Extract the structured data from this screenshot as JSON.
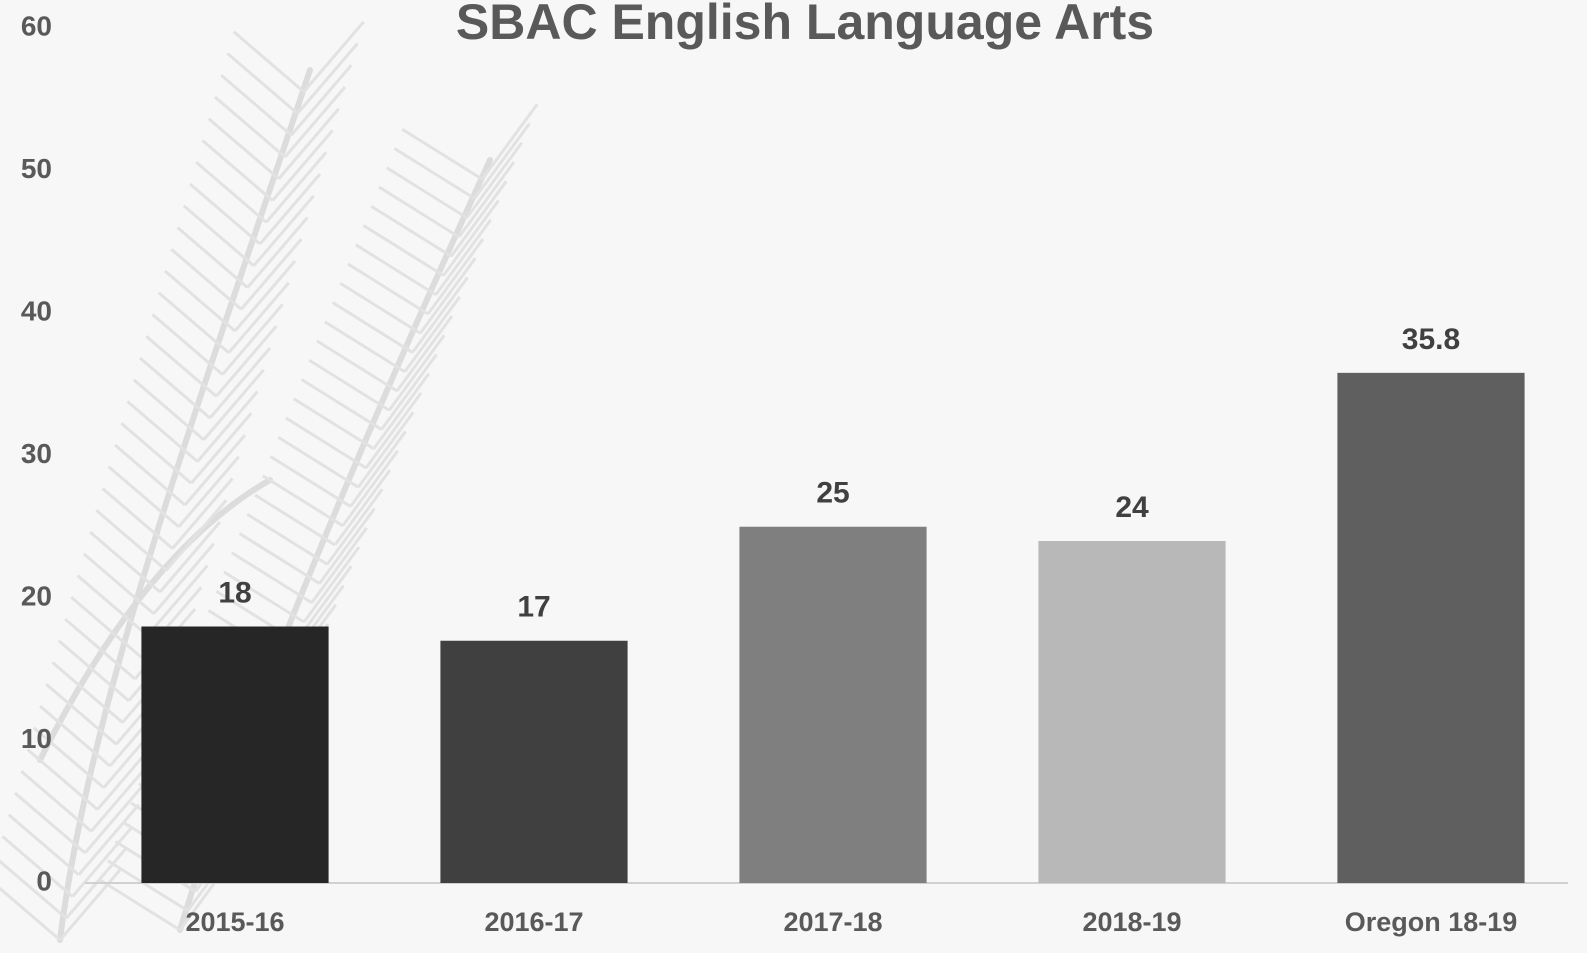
{
  "chart_data": {
    "type": "bar",
    "title": "SBAC English Language Arts",
    "categories": [
      "2015-16",
      "2016-17",
      "2017-18",
      "2018-19",
      "Oregon 18-19"
    ],
    "values": [
      18,
      17,
      25,
      24,
      35.8
    ],
    "colors": [
      "#262626",
      "#404040",
      "#7f7f7f",
      "#b8b8b8",
      "#5f5f5f"
    ],
    "ylim": [
      0,
      60
    ],
    "yticks": [
      0,
      10,
      20,
      30,
      40,
      50,
      60
    ],
    "grid": false
  }
}
